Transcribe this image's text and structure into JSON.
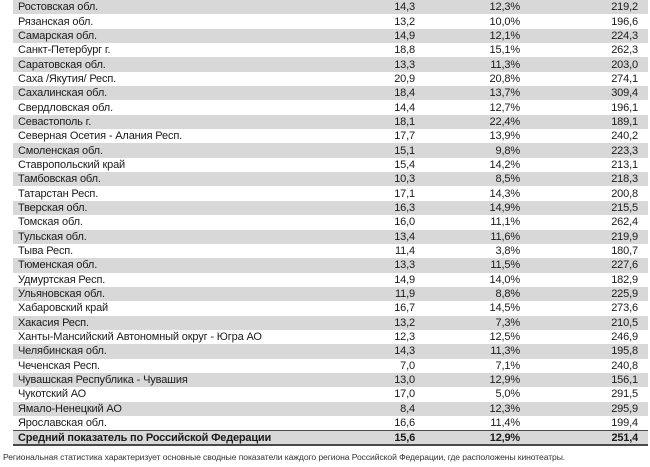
{
  "table": {
    "columns": [
      "region",
      "value1",
      "value2_percent",
      "value3"
    ],
    "rows": [
      {
        "name": "Ростовская обл.",
        "v1": "14,3",
        "v2": "12,3%",
        "v3": "219,2"
      },
      {
        "name": "Рязанская обл.",
        "v1": "13,2",
        "v2": "10,0%",
        "v3": "196,6"
      },
      {
        "name": "Самарская обл.",
        "v1": "14,9",
        "v2": "12,1%",
        "v3": "224,3"
      },
      {
        "name": "Санкт-Петербург г.",
        "v1": "18,8",
        "v2": "15,1%",
        "v3": "262,3"
      },
      {
        "name": "Саратовская обл.",
        "v1": "13,3",
        "v2": "11,3%",
        "v3": "203,0"
      },
      {
        "name": "Саха /Якутия/ Респ.",
        "v1": "20,9",
        "v2": "20,8%",
        "v3": "274,1"
      },
      {
        "name": "Сахалинская обл.",
        "v1": "18,4",
        "v2": "13,7%",
        "v3": "309,4"
      },
      {
        "name": "Свердловская обл.",
        "v1": "14,4",
        "v2": "12,7%",
        "v3": "196,1"
      },
      {
        "name": "Севастополь г.",
        "v1": "18,1",
        "v2": "22,4%",
        "v3": "189,1"
      },
      {
        "name": "Северная Осетия - Алания Респ.",
        "v1": "17,7",
        "v2": "13,9%",
        "v3": "240,2"
      },
      {
        "name": "Смоленская обл.",
        "v1": "15,1",
        "v2": "9,8%",
        "v3": "223,3"
      },
      {
        "name": "Ставропольский край",
        "v1": "15,4",
        "v2": "14,2%",
        "v3": "213,1"
      },
      {
        "name": "Тамбовская обл.",
        "v1": "10,3",
        "v2": "8,5%",
        "v3": "218,3"
      },
      {
        "name": "Татарстан Респ.",
        "v1": "17,1",
        "v2": "14,3%",
        "v3": "200,8"
      },
      {
        "name": "Тверская обл.",
        "v1": "16,3",
        "v2": "14,9%",
        "v3": "215,5"
      },
      {
        "name": "Томская обл.",
        "v1": "16,0",
        "v2": "11,1%",
        "v3": "262,4"
      },
      {
        "name": "Тульская обл.",
        "v1": "13,4",
        "v2": "11,6%",
        "v3": "219,9"
      },
      {
        "name": "Тыва Респ.",
        "v1": "11,4",
        "v2": "3,8%",
        "v3": "180,7"
      },
      {
        "name": "Тюменская обл.",
        "v1": "13,3",
        "v2": "11,5%",
        "v3": "227,6"
      },
      {
        "name": "Удмуртская Респ.",
        "v1": "14,9",
        "v2": "14,0%",
        "v3": "182,9"
      },
      {
        "name": "Ульяновская обл.",
        "v1": "11,9",
        "v2": "8,8%",
        "v3": "225,9"
      },
      {
        "name": "Хабаровский край",
        "v1": "16,7",
        "v2": "14,5%",
        "v3": "273,6"
      },
      {
        "name": "Хакасия Респ.",
        "v1": "13,2",
        "v2": "7,3%",
        "v3": "210,5"
      },
      {
        "name": "Ханты-Мансийский Автономный округ - Югра АО",
        "v1": "12,3",
        "v2": "12,5%",
        "v3": "246,9"
      },
      {
        "name": "Челябинская обл.",
        "v1": "14,3",
        "v2": "11,3%",
        "v3": "195,8"
      },
      {
        "name": "Чеченская Респ.",
        "v1": "7,0",
        "v2": "7,1%",
        "v3": "240,8"
      },
      {
        "name": "Чувашская Республика - Чувашия",
        "v1": "13,0",
        "v2": "12,9%",
        "v3": "156,1"
      },
      {
        "name": "Чукотский АО",
        "v1": "17,0",
        "v2": "5,0%",
        "v3": "291,5"
      },
      {
        "name": "Ямало-Ненецкий АО",
        "v1": "8,4",
        "v2": "12,3%",
        "v3": "295,9"
      },
      {
        "name": "Ярославская обл.",
        "v1": "16,6",
        "v2": "11,4%",
        "v3": "199,4"
      }
    ],
    "summary": {
      "name": "Средний показатель по Российской Федерации",
      "v1": "15,6",
      "v2": "12,9%",
      "v3": "251,4"
    }
  },
  "footer": {
    "note": "Региональная статистика характеризует основные сводные показатели каждого региона Российской Федерации, где расположены кинотеатры."
  },
  "colors": {
    "row_shade": "#d8d8d8",
    "summary_border": "#4a4a4a",
    "text": "#1b1b1b",
    "footnote_text": "#333333"
  }
}
